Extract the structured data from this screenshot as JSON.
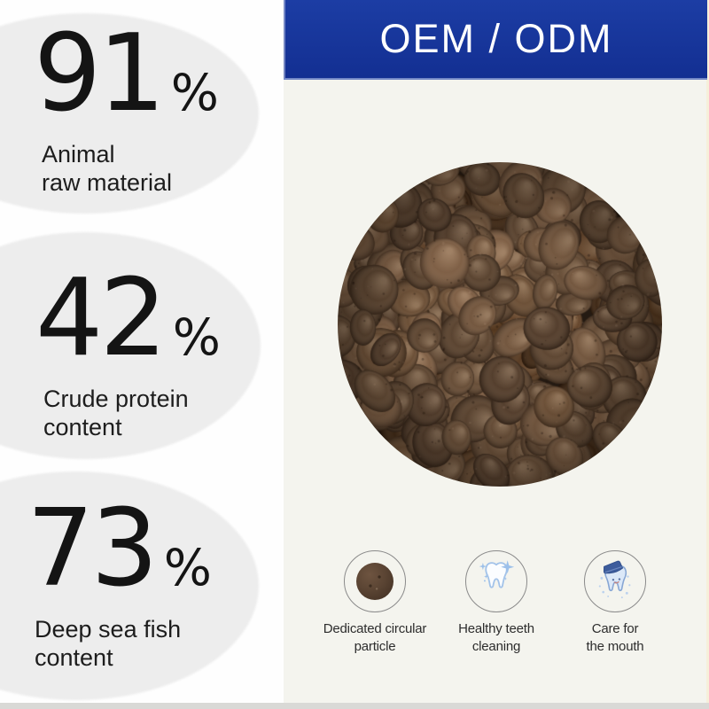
{
  "banner": {
    "label": "OEM / ODM",
    "bg_color": "#15339b",
    "text_color": "#ffffff"
  },
  "stats": [
    {
      "value": "91",
      "unit": "%",
      "label_lines": [
        "Animal",
        "raw material"
      ]
    },
    {
      "value": "42",
      "unit": "%",
      "label_lines": [
        "Crude protein",
        "content"
      ]
    },
    {
      "value": "73",
      "unit": "%",
      "label_lines": [
        "Deep sea fish",
        "content"
      ]
    }
  ],
  "photo": {
    "subject": "round brown dog-food kibble pieces in a circular crop",
    "palette": [
      "#4a3525",
      "#553e2b",
      "#5f4631",
      "#6b4f38",
      "#77583f",
      "#513b29",
      "#644830"
    ]
  },
  "features": [
    {
      "icon": "kibble-particle-icon",
      "label_lines": [
        "Dedicated circular",
        "particle"
      ]
    },
    {
      "icon": "sparkling-tooth-icon",
      "label_lines": [
        "Healthy teeth",
        "cleaning"
      ]
    },
    {
      "icon": "tooth-care-icon",
      "label_lines": [
        "Care for",
        "the mouth"
      ]
    }
  ],
  "colors": {
    "banner_blue": "#15339b",
    "page_left_bg": "#ffffff",
    "page_right_bg": "#f4f4ee",
    "ellipse_gray": "#ededed",
    "icon_light_blue": "#9fc2e8",
    "icon_dark_blue": "#3d5c9c",
    "right_edge_strip": "#f6efda",
    "bottom_strip": "#d9d9d6"
  }
}
